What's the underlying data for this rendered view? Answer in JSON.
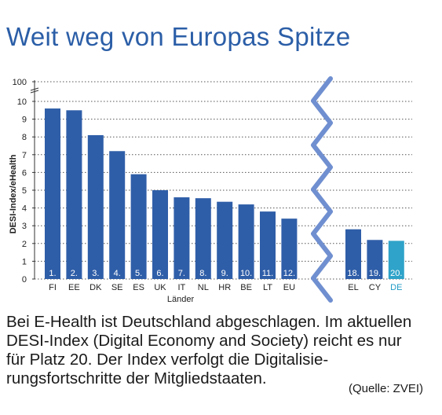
{
  "title": "Weit weg von Europas Spitze",
  "caption": "Bei E-Health ist Deutschland abgeschlagen. Im aktu­ellen DESI-Index (Digital Economy and Society) reicht es nur für Platz 20. Der Index verfolgt die Digitalisie­rungsfortschritte der Mitgliedstaaten.",
  "source": "(Quelle: ZVEI)",
  "chart_data": {
    "type": "bar",
    "ylabel": "DESI-Index/eHealth",
    "xlabel": "Länder",
    "yticks": [
      "0",
      "1",
      "2",
      "3",
      "4",
      "5",
      "6",
      "7",
      "8",
      "9",
      "10",
      "100"
    ],
    "y_axis_break": "10 to 100",
    "axis_break_between_groups": true,
    "grid": "dotted horizontal",
    "groups": [
      {
        "categories": [
          "FI",
          "EE",
          "DK",
          "SE",
          "ES",
          "UK",
          "IT",
          "NL",
          "HR",
          "BE",
          "LT",
          "EU"
        ],
        "ranks": [
          "1.",
          "2.",
          "3.",
          "4.",
          "5.",
          "6.",
          "7.",
          "8.",
          "9.",
          "10.",
          "11.",
          "12."
        ],
        "values": [
          9.6,
          9.5,
          8.1,
          7.2,
          5.9,
          5.0,
          4.6,
          4.55,
          4.35,
          4.2,
          3.8,
          3.4
        ]
      },
      {
        "categories": [
          "EL",
          "CY",
          "DE"
        ],
        "ranks": [
          "18.",
          "19.",
          "20."
        ],
        "values": [
          2.8,
          2.2,
          2.15
        ],
        "highlight": "DE"
      }
    ],
    "colors": {
      "bar": "#2f5ea8",
      "highlight": "#2fa3c9",
      "break_line": "#6f8fd0",
      "highlight_label": "#1f9ac4"
    }
  }
}
